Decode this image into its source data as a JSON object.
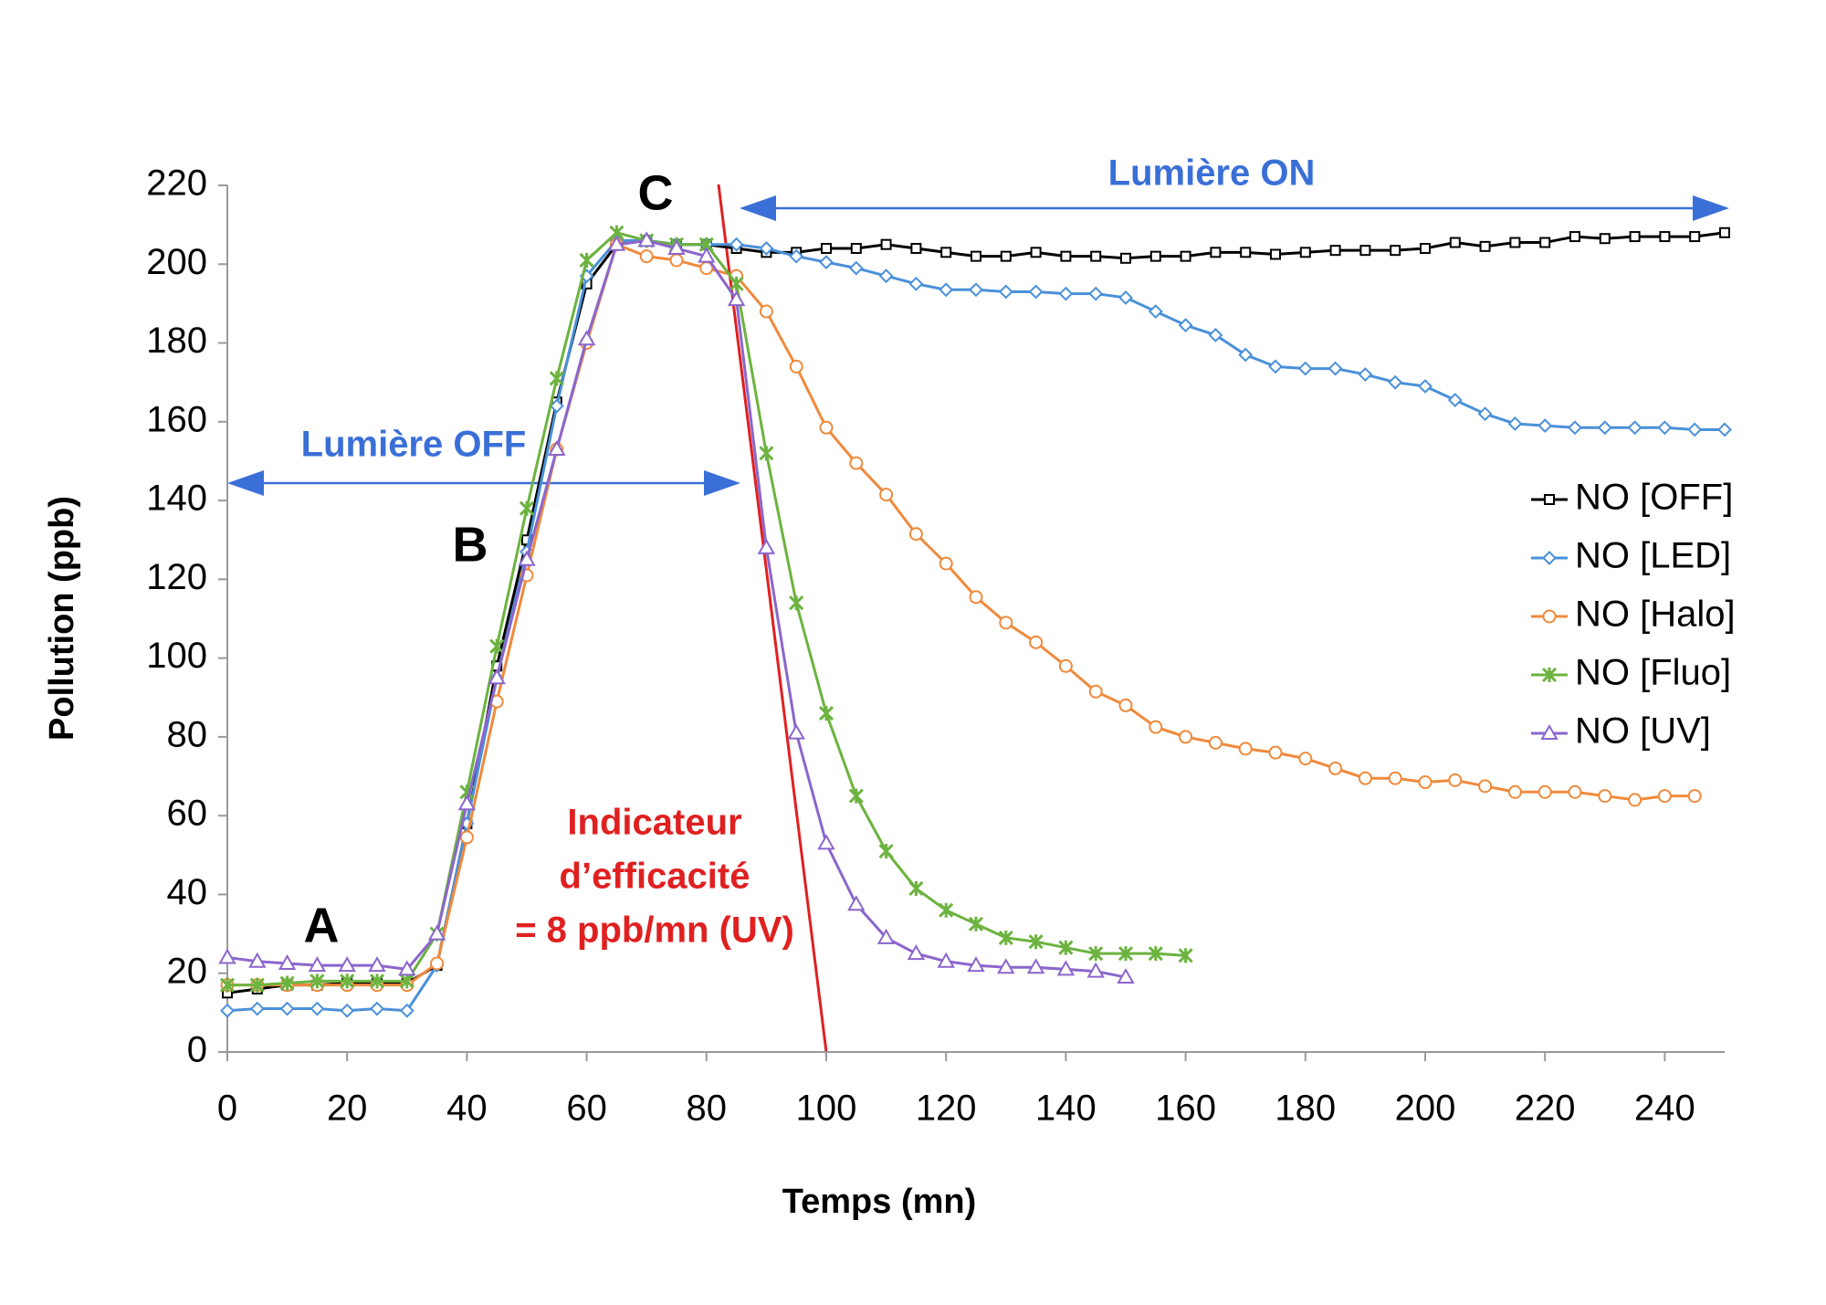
{
  "chart_data": {
    "type": "line",
    "x_label": "Temps (mn)",
    "y_label": "Pollution (ppb)",
    "xlim": [
      0,
      250
    ],
    "ylim": [
      0,
      220
    ],
    "xticks": [
      0,
      20,
      40,
      60,
      80,
      100,
      120,
      140,
      160,
      180,
      200,
      220,
      240
    ],
    "yticks": [
      0,
      20,
      40,
      60,
      80,
      100,
      120,
      140,
      160,
      180,
      200,
      220
    ],
    "legend": "right",
    "annotations": {
      "light_on": "Lumière ON",
      "light_off": "Lumière OFF",
      "indicator_1": "Indicateur",
      "indicator_2": "d’efficacité",
      "indicator_3": "= 8 ppb/mn (UV)",
      "a": "A",
      "b": "B",
      "c": "C"
    },
    "series": [
      {
        "name": "NO [OFF]",
        "color": "#000000",
        "marker": "square",
        "x": [
          0,
          5,
          10,
          15,
          20,
          25,
          30,
          35,
          40,
          45,
          50,
          55,
          60,
          65,
          70,
          75,
          80,
          85,
          90,
          95,
          100,
          105,
          110,
          115,
          120,
          125,
          130,
          135,
          140,
          145,
          150,
          155,
          160,
          165,
          170,
          175,
          180,
          185,
          190,
          195,
          200,
          205,
          210,
          215,
          220,
          225,
          230,
          235,
          240,
          245,
          250
        ],
        "values": [
          15,
          16,
          17,
          17,
          17.5,
          17.5,
          17.5,
          22,
          58,
          98,
          130,
          165,
          195,
          205,
          206,
          205,
          205,
          204,
          203,
          203,
          204,
          204,
          205,
          204,
          203,
          202,
          202,
          203,
          202,
          202,
          201.5,
          202,
          202,
          203,
          203,
          202.5,
          203,
          203.5,
          203.5,
          203.5,
          204,
          205.5,
          204.5,
          205.5,
          205.5,
          207,
          206.5,
          207,
          207,
          207,
          208
        ]
      },
      {
        "name": "NO [LED]",
        "color": "#4a90d9",
        "marker": "diamond",
        "x": [
          0,
          5,
          10,
          15,
          20,
          25,
          30,
          35,
          40,
          45,
          50,
          55,
          60,
          65,
          70,
          75,
          80,
          85,
          90,
          95,
          100,
          105,
          110,
          115,
          120,
          125,
          130,
          135,
          140,
          145,
          150,
          155,
          160,
          165,
          170,
          175,
          180,
          185,
          190,
          195,
          200,
          205,
          210,
          215,
          220,
          225,
          230,
          235,
          240,
          245,
          250
        ],
        "values": [
          10.5,
          11,
          11,
          11,
          10.5,
          11,
          10.5,
          22,
          58,
          95,
          127,
          164,
          197,
          206,
          206,
          205,
          205,
          205,
          204,
          202,
          200.5,
          199,
          197,
          195,
          193.5,
          193.5,
          193,
          193,
          192.5,
          192.5,
          191.5,
          188,
          184.5,
          182,
          177,
          174,
          173.5,
          173.5,
          172,
          170,
          169,
          165.5,
          162,
          159.5,
          159,
          158.5,
          158.5,
          158.5,
          158.5,
          158,
          158
        ]
      },
      {
        "name": "NO [Halo]",
        "color": "#ef8a3c",
        "marker": "circle",
        "x": [
          0,
          5,
          10,
          15,
          20,
          25,
          30,
          35,
          40,
          45,
          50,
          55,
          60,
          65,
          70,
          75,
          80,
          85,
          90,
          95,
          100,
          105,
          110,
          115,
          120,
          125,
          130,
          135,
          140,
          145,
          150,
          155,
          160,
          165,
          170,
          175,
          180,
          185,
          190,
          195,
          200,
          205,
          210,
          215,
          220,
          225,
          230,
          235,
          240,
          245
        ],
        "values": [
          17,
          17,
          17,
          17,
          17,
          17,
          17,
          22.5,
          54.5,
          89,
          121,
          153,
          180,
          205,
          202,
          201,
          199,
          197,
          188,
          174,
          158.5,
          149.5,
          141.5,
          131.5,
          124,
          115.5,
          109,
          104,
          98,
          91.5,
          88,
          82.5,
          80,
          78.5,
          77,
          76,
          74.5,
          72,
          69.5,
          69.5,
          68.5,
          69,
          67.5,
          66,
          66,
          66,
          65,
          64,
          65,
          65
        ]
      },
      {
        "name": "NO [Fluo]",
        "color": "#6cb33f",
        "marker": "star",
        "x": [
          0,
          5,
          10,
          15,
          20,
          25,
          30,
          35,
          40,
          45,
          50,
          55,
          60,
          65,
          70,
          75,
          80,
          85,
          90,
          95,
          100,
          105,
          110,
          115,
          120,
          125,
          130,
          135,
          140,
          145,
          150,
          155,
          160
        ],
        "values": [
          17,
          17,
          17.5,
          18,
          18,
          18,
          18,
          30,
          66,
          103,
          138,
          171,
          201,
          208,
          206,
          205,
          205,
          195,
          152,
          114,
          86,
          65,
          51,
          41.5,
          36,
          32.5,
          29,
          28,
          26.5,
          25,
          25,
          25,
          24.5
        ]
      },
      {
        "name": "NO [UV]",
        "color": "#8a66cc",
        "marker": "triangle",
        "x": [
          0,
          5,
          10,
          15,
          20,
          25,
          30,
          35,
          40,
          45,
          50,
          55,
          60,
          65,
          70,
          75,
          80,
          85,
          90,
          95,
          100,
          105,
          110,
          115,
          120,
          125,
          130,
          135,
          140,
          145,
          150
        ],
        "values": [
          24,
          23,
          22.5,
          22,
          22,
          22,
          21,
          30,
          63,
          95,
          125,
          153,
          181,
          205,
          206,
          204,
          202,
          191,
          128,
          81,
          53,
          37.5,
          29,
          25,
          23,
          22,
          21.5,
          21.5,
          21,
          20.5,
          19
        ]
      }
    ]
  }
}
